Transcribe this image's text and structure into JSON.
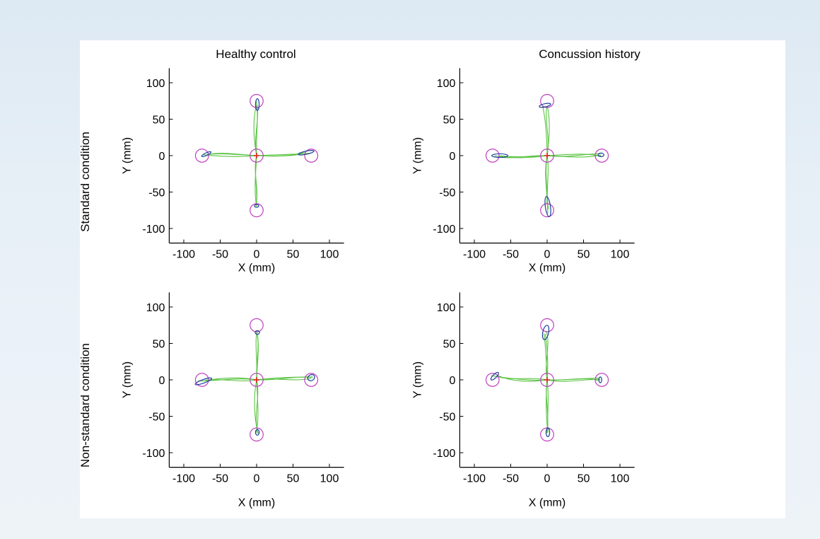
{
  "figure": {
    "column_titles": [
      "Healthy control",
      "Concussion history"
    ],
    "row_titles": [
      "Standard condition",
      "Non-standard condition"
    ]
  },
  "colors": {
    "target_circle": "#c040c0",
    "trajectory": "#5cc445",
    "endpoint_ellipse": "#1c3e9c",
    "center_marker": "#e02020",
    "axes": "#000000"
  },
  "chart_data": [
    {
      "type": "scatter",
      "panel": "Healthy control / Standard condition",
      "xlabel": "X (mm)",
      "ylabel": "Y (mm)",
      "xlim": [
        -120,
        120
      ],
      "ylim": [
        -120,
        120
      ],
      "xticks": [
        -100,
        -50,
        0,
        50,
        100
      ],
      "yticks": [
        100,
        50,
        0,
        -50,
        -100
      ],
      "grid": false,
      "targets": [
        [
          0,
          0
        ],
        [
          0,
          75
        ],
        [
          0,
          -75
        ],
        [
          -75,
          0
        ],
        [
          75,
          0
        ]
      ],
      "target_radius": 9,
      "endpoints": [
        {
          "x": 1,
          "y": 70,
          "rx": 2.5,
          "ry": 8,
          "angle": 0
        },
        {
          "x": 0,
          "y": -69,
          "rx": 3,
          "ry": 2,
          "angle": 0
        },
        {
          "x": -69,
          "y": 2,
          "rx": 7,
          "ry": 1.8,
          "angle": -25
        },
        {
          "x": 68,
          "y": 4,
          "rx": 11,
          "ry": 2.2,
          "angle": -12
        }
      ]
    },
    {
      "type": "scatter",
      "panel": "Concussion history / Standard condition",
      "xlabel": "X (mm)",
      "ylabel": "Y (mm)",
      "xlim": [
        -120,
        120
      ],
      "ylim": [
        -120,
        120
      ],
      "xticks": [
        -100,
        -50,
        0,
        50,
        100
      ],
      "yticks": [
        100,
        50,
        0,
        -50,
        -100
      ],
      "grid": false,
      "targets": [
        [
          0,
          0
        ],
        [
          0,
          75
        ],
        [
          0,
          -75
        ],
        [
          -75,
          0
        ],
        [
          75,
          0
        ]
      ],
      "target_radius": 9,
      "endpoints": [
        {
          "x": -3,
          "y": 69,
          "rx": 8,
          "ry": 2.2,
          "angle": -12
        },
        {
          "x": 1,
          "y": -70,
          "rx": 3.5,
          "ry": 14,
          "angle": -8
        },
        {
          "x": -65,
          "y": 0,
          "rx": 11,
          "ry": 2.5,
          "angle": 0
        },
        {
          "x": 74,
          "y": 1,
          "rx": 4,
          "ry": 2.5,
          "angle": 0
        }
      ]
    },
    {
      "type": "scatter",
      "panel": "Healthy control / Non-standard condition",
      "xlabel": "X (mm)",
      "ylabel": "Y (mm)",
      "xlim": [
        -120,
        120
      ],
      "ylim": [
        -120,
        120
      ],
      "xticks": [
        -100,
        -50,
        0,
        50,
        100
      ],
      "yticks": [
        100,
        50,
        0,
        -50,
        -100
      ],
      "grid": false,
      "targets": [
        [
          0,
          0
        ],
        [
          0,
          75
        ],
        [
          0,
          -75
        ],
        [
          -75,
          0
        ],
        [
          75,
          0
        ]
      ],
      "target_radius": 9,
      "endpoints": [
        {
          "x": 1,
          "y": 65,
          "rx": 3,
          "ry": 2.5,
          "angle": 0
        },
        {
          "x": 1,
          "y": -72,
          "rx": 2.5,
          "ry": 4,
          "angle": 0
        },
        {
          "x": -73,
          "y": -2,
          "rx": 12,
          "ry": 2.5,
          "angle": -20
        },
        {
          "x": 75,
          "y": 3,
          "rx": 5,
          "ry": 4,
          "angle": -30
        }
      ]
    },
    {
      "type": "scatter",
      "panel": "Concussion history / Non-standard condition",
      "xlabel": "X (mm)",
      "ylabel": "Y (mm)",
      "xlim": [
        -120,
        120
      ],
      "ylim": [
        -120,
        120
      ],
      "xticks": [
        -100,
        -50,
        0,
        50,
        100
      ],
      "yticks": [
        100,
        50,
        0,
        -50,
        -100
      ],
      "grid": false,
      "targets": [
        [
          0,
          0
        ],
        [
          0,
          75
        ],
        [
          0,
          -75
        ],
        [
          -75,
          0
        ],
        [
          75,
          0
        ]
      ],
      "target_radius": 9,
      "endpoints": [
        {
          "x": -2,
          "y": 65,
          "rx": 4,
          "ry": 10,
          "angle": 12
        },
        {
          "x": 1,
          "y": -72,
          "rx": 2.5,
          "ry": 6,
          "angle": 0
        },
        {
          "x": -72,
          "y": 5,
          "rx": 7,
          "ry": 2.5,
          "angle": -45
        },
        {
          "x": 73,
          "y": 0,
          "rx": 2,
          "ry": 4,
          "angle": 0
        }
      ]
    }
  ]
}
